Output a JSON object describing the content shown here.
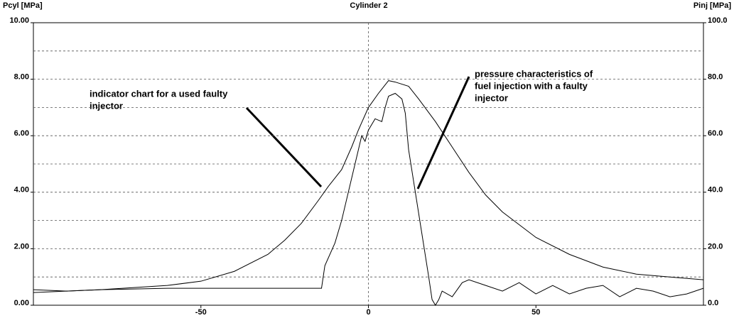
{
  "chart_data": {
    "type": "line",
    "title": "Cylinder 2",
    "ylabel": "Pcyl [MPa]",
    "y2label": "Pinj [MPa]",
    "xlim": [
      -100,
      100
    ],
    "xticks": [
      -50,
      0,
      50
    ],
    "xgrid_at": [
      0
    ],
    "ylim": [
      0,
      10
    ],
    "yticks": [
      {
        "value": 0,
        "label": "0.00"
      },
      {
        "value": 2,
        "label": "2.00"
      },
      {
        "value": 4,
        "label": "4.00"
      },
      {
        "value": 6,
        "label": "6.00"
      },
      {
        "value": 8,
        "label": "8.00"
      },
      {
        "value": 10,
        "label": "10.00"
      }
    ],
    "y_minor_grid": [
      1,
      3,
      5,
      7,
      9
    ],
    "y2lim": [
      0,
      100
    ],
    "y2ticks": [
      {
        "value": 0,
        "label": "0.0"
      },
      {
        "value": 20,
        "label": "20.0"
      },
      {
        "value": 40,
        "label": "40.0"
      },
      {
        "value": 60,
        "label": "60.0"
      },
      {
        "value": 80,
        "label": "80.0"
      },
      {
        "value": 100,
        "label": "100.0"
      }
    ],
    "grid": true,
    "series": [
      {
        "color": "#000000",
        "x": [
          -100,
          -80,
          -60,
          -50,
          -40,
          -30,
          -25,
          -20,
          -15,
          -12,
          -8,
          -5,
          -3,
          0,
          3,
          6,
          8,
          12,
          15,
          20,
          25,
          30,
          35,
          40,
          50,
          60,
          70,
          80,
          90,
          100
        ],
        "values": [
          0.45,
          0.55,
          0.7,
          0.85,
          1.2,
          1.8,
          2.3,
          2.9,
          3.7,
          4.2,
          4.8,
          5.6,
          6.2,
          7.0,
          7.5,
          7.95,
          7.9,
          7.75,
          7.3,
          6.5,
          5.6,
          4.7,
          3.9,
          3.3,
          2.4,
          1.8,
          1.35,
          1.1,
          1.0,
          0.9
        ]
      },
      {
        "color": "#000000",
        "axis": "y2",
        "x": [
          -100,
          -90,
          -80,
          -60,
          -40,
          -20,
          -14,
          -13,
          -10,
          -8,
          -5,
          -3,
          -2,
          -1,
          0,
          2,
          4,
          5,
          6,
          8,
          10,
          11,
          12,
          14,
          16,
          18,
          19,
          20,
          21,
          22,
          25,
          28,
          30,
          35,
          40,
          45,
          50,
          55,
          60,
          65,
          70,
          75,
          80,
          85,
          90,
          95,
          100
        ],
        "values": [
          5.5,
          5,
          5.5,
          6,
          6,
          6,
          6,
          14,
          22,
          30,
          45,
          55,
          60,
          58,
          62,
          66,
          65,
          70,
          74,
          75,
          73,
          68,
          55,
          40,
          25,
          10,
          2,
          0,
          2,
          5,
          3,
          8,
          9,
          7,
          5,
          8,
          4,
          7,
          4,
          6,
          7,
          3,
          6,
          5,
          3,
          4,
          6
        ]
      }
    ],
    "annotations": [
      {
        "lines": [
          "indicator chart for a used faulty",
          "injector"
        ]
      },
      {
        "lines": [
          "pressure characteristics of",
          "fuel injection with a faulty",
          "injector"
        ]
      }
    ]
  }
}
